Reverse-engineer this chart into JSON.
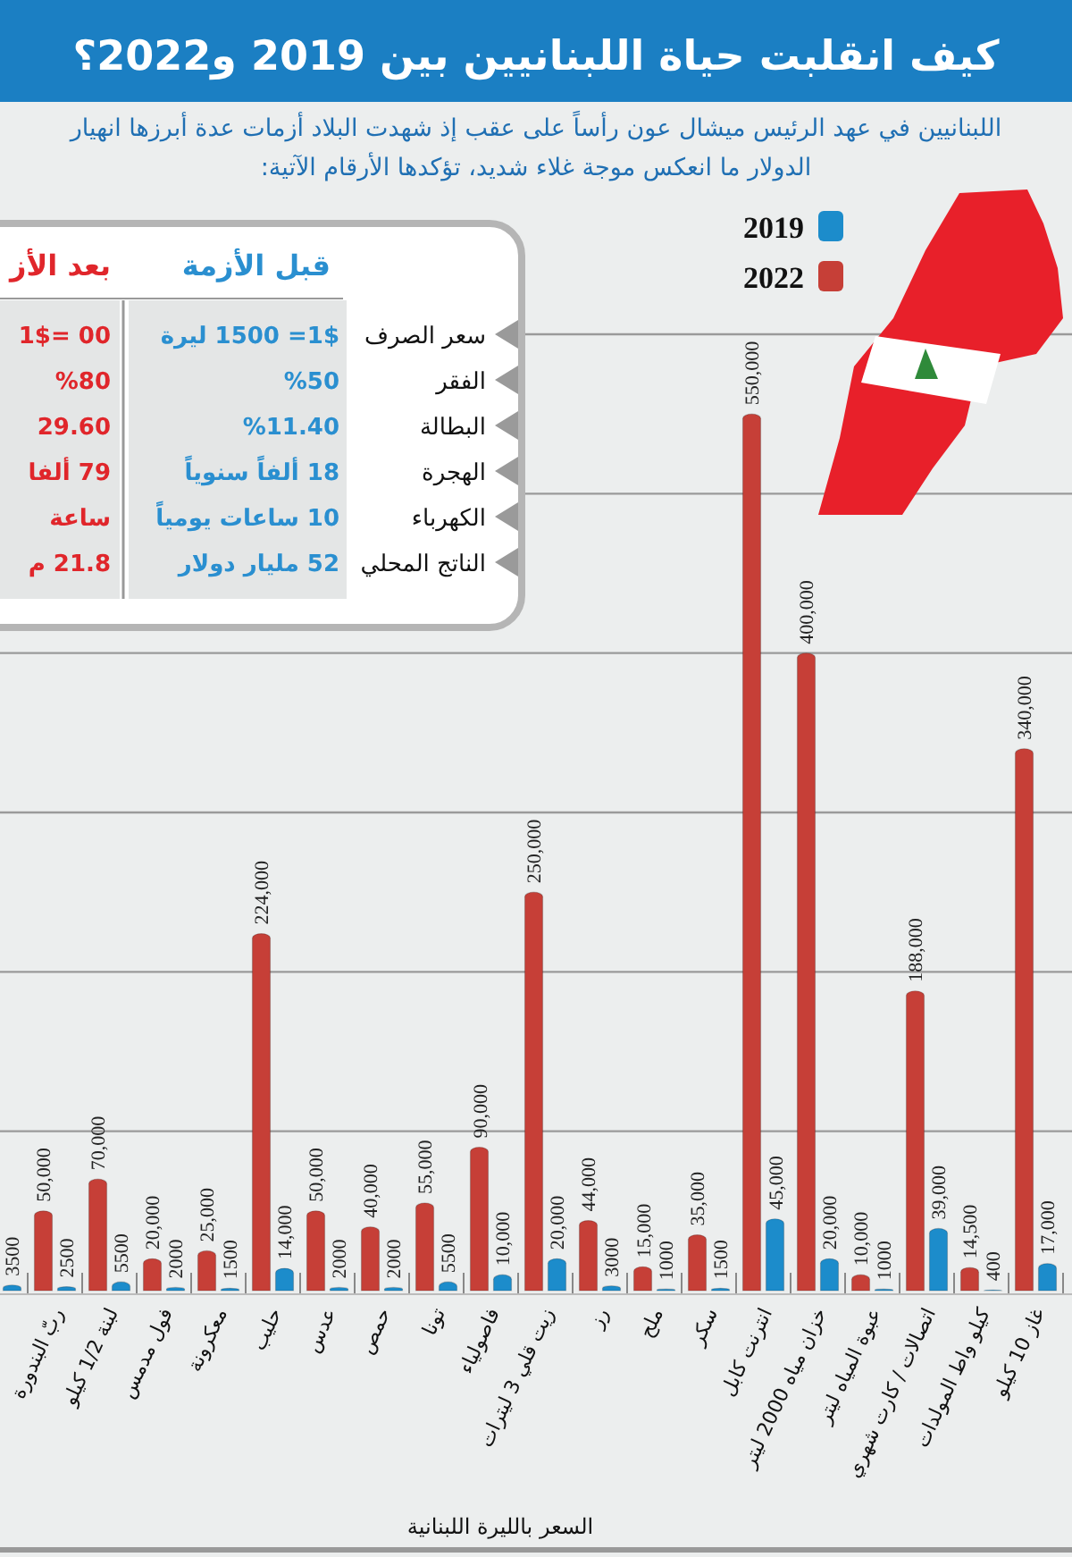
{
  "chart_data": [
    {
      "type": "bar",
      "title": "كيف انقلبت حياة اللبنانيين بين 2019 و2022؟",
      "subtitle": "اللبنانيين في عهد الرئيس ميشال عون رأساً على عقب إذ شهدت البلاد أزمات عدة أبرزها انهيار\nالدولار ما انعكس موجة غلاء شديد، تؤكدها الأرقام الآتية:",
      "xlabel": "السعر بالليرة اللبنانية",
      "categories": [
        null,
        "ربّ البندورة",
        "لبنة 1/2 كيلو",
        "فول مدمس",
        "معكرونة",
        "حليب",
        "عدس",
        "حمص",
        "تونا",
        "فاصولياء",
        "زيت قلي 3 ليترات",
        "رز",
        "ملح",
        "سكر",
        "انترنت كابل",
        "خزان مياه 2000 ليتر",
        "عبوة المياه ليتر",
        "اتصالات / كارت شهري",
        "كيلو واط المولدات",
        "غاز 10 كيلو"
      ],
      "series": [
        {
          "name": "2019",
          "color": "#1c8ccb",
          "values": [
            3500,
            2500,
            5500,
            2000,
            1500,
            14000,
            2000,
            2000,
            5500,
            10000,
            20000,
            3000,
            1000,
            1500,
            45000,
            20000,
            1000,
            39000,
            400,
            17000
          ],
          "value_labels": [
            "3500",
            "2500",
            "5500",
            "2000",
            "1500",
            "14,000",
            "2000",
            "2000",
            "5500",
            "10,000",
            "20,000",
            "3000",
            "1000",
            "1500",
            "45,000",
            "20,000",
            "1000",
            "39,000",
            "400",
            "17,000"
          ]
        },
        {
          "name": "2022",
          "color": "#c63f37",
          "values": [
            null,
            50000,
            70000,
            20000,
            25000,
            224000,
            50000,
            40000,
            55000,
            90000,
            250000,
            44000,
            15000,
            35000,
            550000,
            400000,
            10000,
            188000,
            14500,
            340000
          ],
          "value_labels": [
            null,
            "50,000",
            "70,000",
            "20,000",
            "25,000",
            "224,000",
            "50,000",
            "40,000",
            "55,000",
            "90,000",
            "250,000",
            "44,000",
            "15,000",
            "35,000",
            "550,000",
            "400,000",
            "10,000",
            "188,000",
            "14,500",
            "340,000"
          ]
        }
      ],
      "ylim": [
        0,
        600000
      ],
      "yticks": [
        {
          "value": 100000,
          "label": null
        },
        {
          "value": 200000,
          "label": null
        },
        {
          "value": 300000,
          "label": null
        },
        {
          "value": 400000,
          "label": null
        },
        {
          "value": 500000,
          "label": null
        },
        {
          "value": 600000,
          "label": null
        }
      ],
      "tick_labels": "x",
      "grid": "y",
      "legend": "top right"
    },
    {
      "type": "other",
      "annotations": [
        "قبل الأزمة",
        "بعد الأز",
        "سعر الصرف",
        "الفقر",
        "البطالة",
        "الهجرة",
        "الكهرباء",
        "الناتج المحلي",
        "1$= 1500 ليرة",
        "%50",
        "%11.40",
        "18 ألفاً سنوياً",
        "10 ساعات يومياً",
        "52 مليار دولار",
        "00 =1$",
        "%80",
        "29.60",
        "79 ألفا",
        "ساعة",
        "21.8 م"
      ]
    }
  ]
}
